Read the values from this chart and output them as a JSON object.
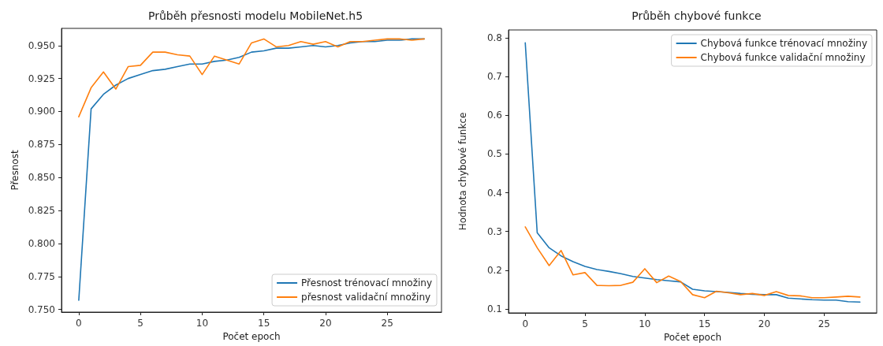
{
  "chart_data": [
    {
      "type": "line",
      "title": "Průběh přesnosti modelu MobileNet.h5",
      "xlabel": "Počet epoch",
      "ylabel": "Přesnost",
      "x": [
        0,
        1,
        2,
        3,
        4,
        5,
        6,
        7,
        8,
        9,
        10,
        11,
        12,
        13,
        14,
        15,
        16,
        17,
        18,
        19,
        20,
        21,
        22,
        23,
        24,
        25,
        26,
        27,
        28
      ],
      "series": [
        {
          "name": "Přesnost trénovací množiny",
          "color": "#1f77b4",
          "values": [
            0.757,
            0.902,
            0.913,
            0.92,
            0.925,
            0.928,
            0.931,
            0.932,
            0.934,
            0.936,
            0.936,
            0.938,
            0.939,
            0.941,
            0.945,
            0.946,
            0.948,
            0.948,
            0.949,
            0.95,
            0.949,
            0.95,
            0.952,
            0.953,
            0.953,
            0.954,
            0.954,
            0.955,
            0.955
          ]
        },
        {
          "name": "přesnost validační množiny",
          "color": "#ff7f0e",
          "values": [
            0.896,
            0.918,
            0.93,
            0.917,
            0.934,
            0.935,
            0.945,
            0.945,
            0.943,
            0.942,
            0.928,
            0.942,
            0.939,
            0.936,
            0.952,
            0.955,
            0.949,
            0.95,
            0.953,
            0.951,
            0.953,
            0.949,
            0.953,
            0.953,
            0.954,
            0.955,
            0.955,
            0.954,
            0.955
          ]
        }
      ],
      "xlim": [
        -1.4,
        29.4
      ],
      "xticks": [
        0,
        5,
        10,
        15,
        20,
        25
      ],
      "ylim": [
        0.748,
        0.963
      ],
      "yticks": [
        {
          "value": 0.75,
          "label": "0.750"
        },
        {
          "value": 0.775,
          "label": "0.775"
        },
        {
          "value": 0.8,
          "label": "0.800"
        },
        {
          "value": 0.825,
          "label": "0.825"
        },
        {
          "value": 0.85,
          "label": "0.850"
        },
        {
          "value": 0.875,
          "label": "0.875"
        },
        {
          "value": 0.9,
          "label": "0.900"
        },
        {
          "value": 0.925,
          "label": "0.925"
        },
        {
          "value": 0.95,
          "label": "0.950"
        }
      ],
      "grid": false,
      "legend": "bottom right",
      "marker": "none",
      "line_style": "solid"
    },
    {
      "type": "line",
      "title": "Průběh chybové funkce",
      "xlabel": "Počet epoch",
      "ylabel": "Hodnota chybové funkce",
      "x": [
        0,
        1,
        2,
        3,
        4,
        5,
        6,
        7,
        8,
        9,
        10,
        11,
        12,
        13,
        14,
        15,
        16,
        17,
        18,
        19,
        20,
        21,
        22,
        23,
        24,
        25,
        26,
        27,
        28
      ],
      "series": [
        {
          "name": "Chybová funkce trénovací množiny",
          "color": "#1f77b4",
          "values": [
            0.787,
            0.297,
            0.258,
            0.237,
            0.222,
            0.21,
            0.202,
            0.197,
            0.191,
            0.184,
            0.18,
            0.176,
            0.173,
            0.17,
            0.151,
            0.147,
            0.145,
            0.143,
            0.14,
            0.138,
            0.137,
            0.137,
            0.128,
            0.126,
            0.124,
            0.123,
            0.123,
            0.119,
            0.118
          ]
        },
        {
          "name": "Chybová funkce validační množiny",
          "color": "#ff7f0e",
          "values": [
            0.312,
            0.258,
            0.212,
            0.251,
            0.188,
            0.194,
            0.161,
            0.16,
            0.161,
            0.169,
            0.204,
            0.168,
            0.185,
            0.171,
            0.137,
            0.129,
            0.146,
            0.142,
            0.137,
            0.14,
            0.135,
            0.145,
            0.135,
            0.134,
            0.129,
            0.129,
            0.131,
            0.133,
            0.131
          ]
        }
      ],
      "xlim": [
        -1.4,
        29.4
      ],
      "xticks": [
        0,
        5,
        10,
        15,
        20,
        25
      ],
      "ylim": [
        0.09,
        0.82
      ],
      "yticks": [
        0.1,
        0.2,
        0.3,
        0.4,
        0.5,
        0.6,
        0.7,
        0.8
      ],
      "grid": false,
      "legend": "top right",
      "marker": "none",
      "line_style": "solid"
    }
  ]
}
